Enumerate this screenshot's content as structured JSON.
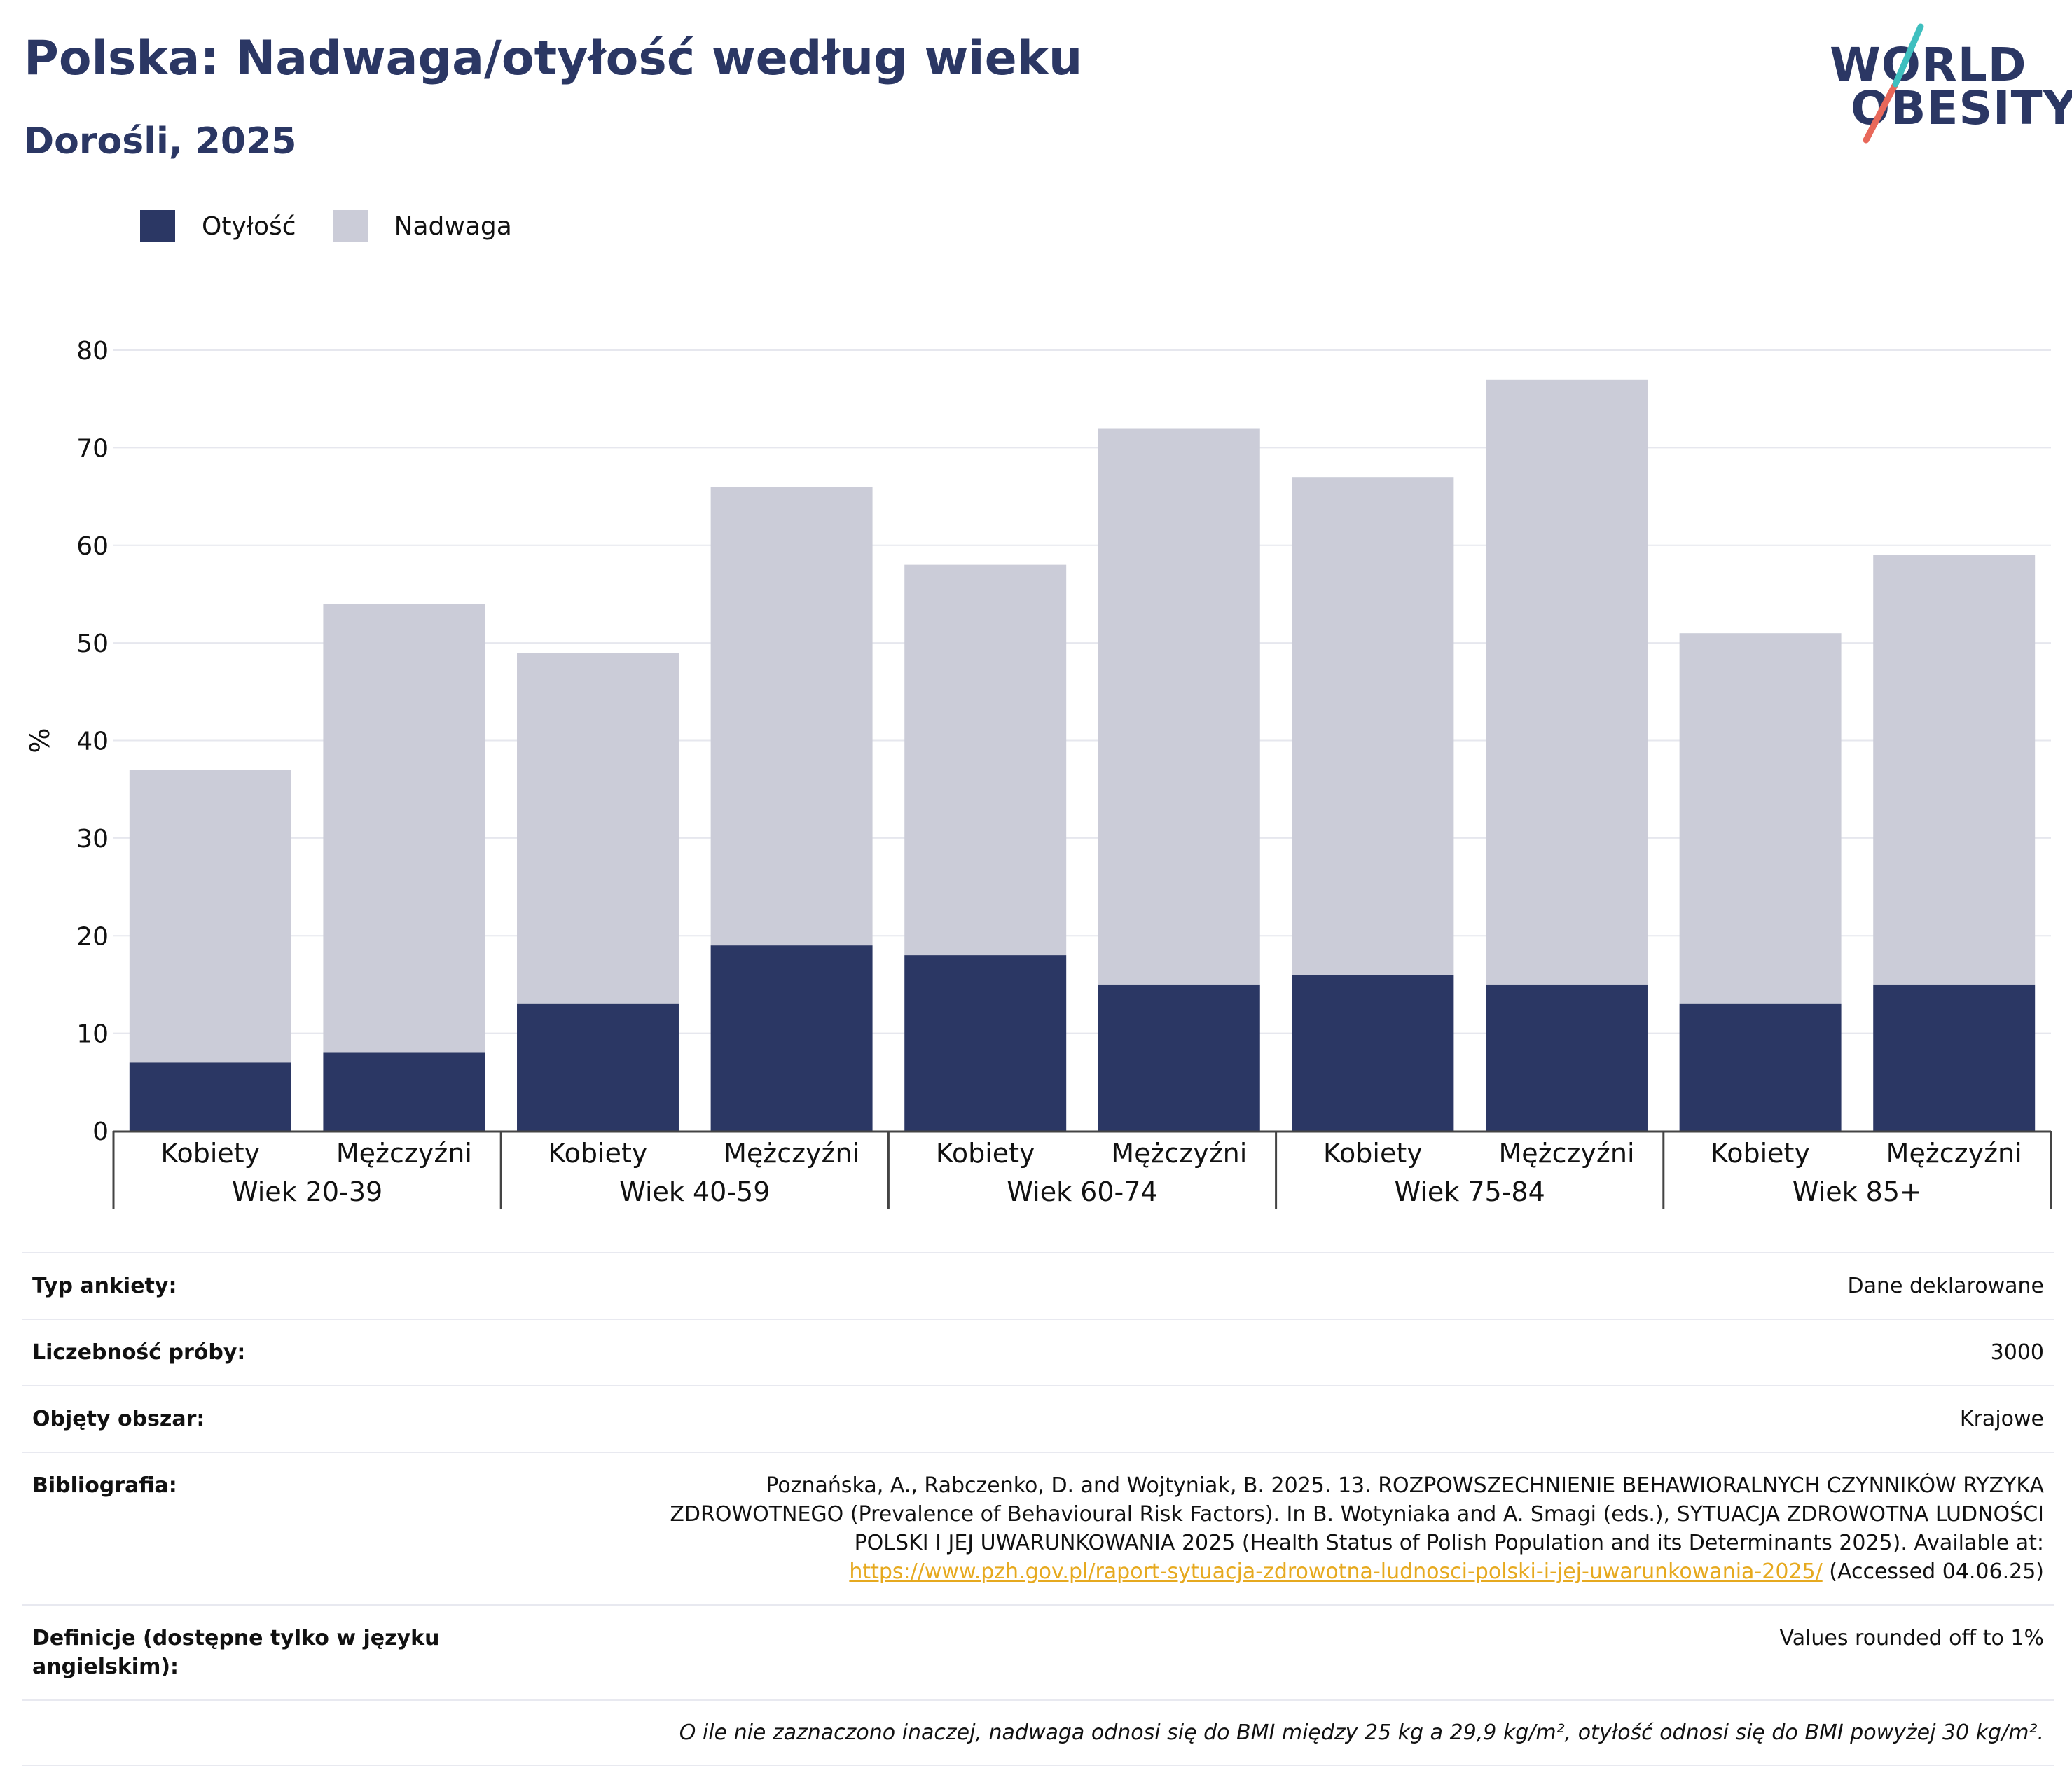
{
  "title": "Polska: Nadwaga/otyłość według wieku",
  "subtitle": "Dorośli, 2025",
  "logo": {
    "line1": "WORLD",
    "line2": "OBESITY"
  },
  "colors": {
    "obesity": "#2b3764",
    "overweight": "#cbccd8",
    "title": "#2b3764",
    "link": "#e6a91f",
    "logo_teal": "#3fbfbf",
    "logo_coral": "#e8685a"
  },
  "chart_data": {
    "type": "bar",
    "stacked": true,
    "title": "Polska: Nadwaga/otyłość według wieku",
    "subtitle": "Dorośli, 2025",
    "ylabel": "%",
    "ylim": [
      0,
      80
    ],
    "yticks": [
      0,
      10,
      20,
      30,
      40,
      50,
      60,
      70,
      80
    ],
    "grid": true,
    "legend_position": "top-left",
    "groups": [
      "Wiek 20-39",
      "Wiek 40-59",
      "Wiek 60-74",
      "Wiek 75-84",
      "Wiek 85+"
    ],
    "subcategories": [
      "Kobiety",
      "Mężczyźni"
    ],
    "series": [
      {
        "name": "Otyłość",
        "values": [
          7,
          8,
          13,
          19,
          18,
          15,
          16,
          15,
          13,
          15
        ]
      },
      {
        "name": "Nadwaga",
        "values": [
          30,
          46,
          36,
          47,
          40,
          57,
          51,
          62,
          38,
          44
        ]
      }
    ]
  },
  "info": {
    "rows": [
      {
        "label": "Typ ankiety:",
        "value": "Dane deklarowane"
      },
      {
        "label": "Liczebność próby:",
        "value": "3000"
      },
      {
        "label": "Objęty obszar:",
        "value": "Krajowe"
      }
    ],
    "bibliography": {
      "label": "Bibliografia:",
      "line1": "Poznańska, A., Rabczenko, D. and Wojtyniak, B. 2025. 13. ROZPOWSZECHNIENIE BEHAWIORALNYCH CZYNNIKÓW RYZYKA",
      "line2": "ZDROWOTNEGO (Prevalence of Behavioural Risk Factors). In B. Wotyniaka and A. Smagi (eds.), SYTUACJA ZDROWOTNA LUDNOŚCI",
      "line3": "POLSKI I JEJ UWARUNKOWANIA 2025 (Health Status of Polish Population and its Determinants 2025). Available at:",
      "link": "https://www.pzh.gov.pl/raport-sytuacja-zdrowotna-ludnosci-polski-i-jej-uwarunkowania-2025/",
      "accessed": " (Accessed 04.06.25)"
    },
    "definitions": {
      "label": "Definicje (dostępne tylko w języku angielskim):",
      "value": "Values rounded off to 1%"
    },
    "note": "O ile nie zaznaczono inaczej, nadwaga odnosi się do BMI między 25 kg a 29,9 kg/m², otyłość odnosi się do BMI powyżej 30 kg/m²."
  }
}
